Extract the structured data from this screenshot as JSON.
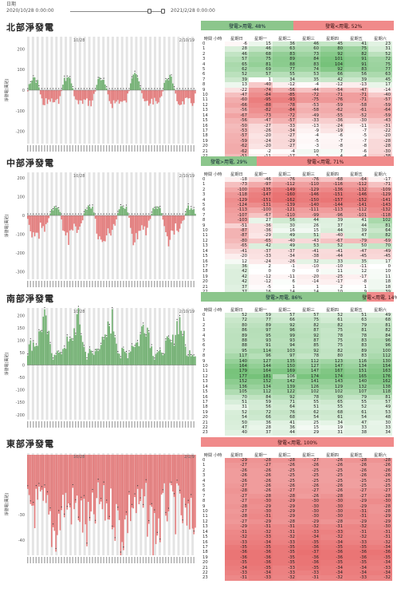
{
  "header": {
    "label": "日期",
    "start_date": "2020/10/28 0:00:00",
    "end_date": "2021/2/28 0:00:00"
  },
  "columns": [
    "時間 小時",
    "星期日",
    "星期一",
    "星期二",
    "星期三",
    "星期四",
    "星期五",
    "星期六"
  ],
  "colors": {
    "positive": "#5aa55a",
    "negative": "#e06666",
    "pos_bar": "#8cc68c",
    "neg_bar": "#f08a8a"
  },
  "sections": [
    {
      "title": "北部淨發電",
      "ylabel": "淨發電(萬瓩)",
      "chart_start": "10/28",
      "chart_end": "2/10/19",
      "pos_label": "發電>用電, 48%",
      "neg_label": "發電<用電, 52%",
      "pos_pct": 48,
      "yticks": [
        200,
        100,
        0,
        -100,
        -200
      ],
      "ylim": [
        -260,
        260
      ],
      "rows": [
        [
          0,
          -6,
          15,
          36,
          46,
          45,
          41,
          23
        ],
        [
          1,
          28,
          46,
          63,
          60,
          80,
          75,
          31
        ],
        [
          2,
          46,
          68,
          83,
          73,
          92,
          82,
          52
        ],
        [
          3,
          57,
          75,
          89,
          84,
          101,
          91,
          72
        ],
        [
          4,
          65,
          81,
          88,
          83,
          104,
          91,
          75
        ],
        [
          5,
          62,
          69,
          77,
          74,
          92,
          83,
          77
        ],
        [
          6,
          52,
          57,
          55,
          53,
          66,
          56,
          63
        ],
        [
          7,
          39,
          1,
          34,
          35,
          42,
          39,
          45
        ],
        [
          8,
          13,
          -40,
          -12,
          -4,
          -12,
          -13,
          17
        ],
        [
          9,
          -22,
          -74,
          -56,
          -44,
          -54,
          -47,
          -14
        ],
        [
          10,
          -47,
          -84,
          -85,
          -72,
          -71,
          -71,
          -40
        ],
        [
          11,
          -60,
          -95,
          -93,
          -75,
          -76,
          -71,
          -57
        ],
        [
          12,
          -66,
          -88,
          -78,
          -53,
          -59,
          -58,
          -59
        ],
        [
          13,
          -56,
          -82,
          -84,
          -58,
          -62,
          -61,
          -64
        ],
        [
          14,
          -67,
          -73,
          -72,
          -49,
          -55,
          -52,
          -59
        ],
        [
          15,
          -56,
          -47,
          -57,
          -33,
          -36,
          -30,
          -43
        ],
        [
          16,
          -50,
          -27,
          -33,
          -13,
          -24,
          -11,
          -31
        ],
        [
          17,
          -53,
          -26,
          -34,
          -9,
          -19,
          -7,
          -22
        ],
        [
          18,
          -57,
          -20,
          -27,
          -4,
          -6,
          -5,
          -20
        ],
        [
          19,
          -59,
          -24,
          -29,
          -5,
          -7,
          -7,
          -28
        ],
        [
          20,
          -62,
          -20,
          -27,
          -3,
          -8,
          -8,
          -28
        ],
        [
          21,
          -62,
          -2,
          -4,
          10,
          7,
          -6,
          -30
        ],
        [
          22,
          -51,
          -11,
          -17,
          5,
          4,
          -4,
          -38
        ],
        [
          23,
          -22,
          -4,
          -11,
          3,
          -3,
          -21,
          -24
        ]
      ]
    },
    {
      "title": "中部淨發電",
      "ylabel": "淨發電(萬瓩)",
      "chart_start": "10/28",
      "chart_end": "2/10/19",
      "pos_label": "發電>用電, 29%",
      "neg_label": "發電<用電, 71%",
      "pos_pct": 29,
      "yticks": [
        200,
        100,
        0,
        -100,
        -200,
        -300
      ],
      "ylim": [
        -340,
        230
      ],
      "rows": [
        [
          0,
          -18,
          -46,
          -76,
          -76,
          -68,
          -64,
          -17
        ],
        [
          1,
          -73,
          -97,
          -112,
          -110,
          -116,
          -112,
          -71
        ],
        [
          2,
          -100,
          -135,
          -149,
          -129,
          -136,
          -132,
          -109
        ],
        [
          3,
          -118,
          -147,
          -160,
          -146,
          -151,
          -146,
          -129
        ],
        [
          4,
          -129,
          -151,
          -162,
          -150,
          -157,
          -152,
          -141
        ],
        [
          5,
          -124,
          -131,
          -139,
          -140,
          -144,
          -141,
          -143
        ],
        [
          6,
          -113,
          -100,
          -121,
          -111,
          -113,
          -112,
          -132
        ],
        [
          7,
          -107,
          -67,
          -110,
          -99,
          -96,
          -101,
          -118
        ],
        [
          8,
          -103,
          27,
          56,
          44,
          39,
          41,
          102
        ],
        [
          9,
          -51,
          -36,
          30,
          26,
          37,
          44,
          81
        ],
        [
          10,
          -87,
          -36,
          16,
          15,
          44,
          39,
          64
        ],
        [
          11,
          -87,
          -29,
          49,
          51,
          -40,
          47,
          82
        ],
        [
          12,
          -80,
          -65,
          -40,
          -43,
          -67,
          -79,
          -69
        ],
        [
          13,
          -65,
          42,
          49,
          53,
          52,
          50,
          70
        ],
        [
          14,
          -41,
          -37,
          -37,
          -41,
          -41,
          -47,
          -49
        ],
        [
          15,
          -20,
          -33,
          -34,
          -38,
          -44,
          -45,
          -45
        ],
        [
          16,
          12,
          -24,
          -26,
          32,
          33,
          35,
          17
        ],
        [
          17,
          36,
          2,
          -1,
          -10,
          -10,
          -11,
          0
        ],
        [
          18,
          42,
          0,
          0,
          0,
          11,
          12,
          10
        ],
        [
          19,
          42,
          -12,
          -11,
          -20,
          -25,
          -17,
          11
        ],
        [
          20,
          42,
          -12,
          6,
          -14,
          -17,
          -8,
          18
        ],
        [
          21,
          37,
          -5,
          1,
          1,
          2,
          1,
          18
        ],
        [
          22,
          37,
          16,
          14,
          14,
          10,
          9,
          39
        ],
        [
          23,
          14,
          -3,
          -2,
          -1,
          3,
          14,
          22
        ]
      ]
    },
    {
      "title": "南部淨發電",
      "ylabel": "淨發電(萬瓩)",
      "chart_start": "10/28",
      "chart_end": "2/10/19",
      "pos_label": "發電>用電, 86%",
      "neg_label": "發電<用電, 14%",
      "pos_pct": 86,
      "yticks": [
        200,
        150,
        100,
        50,
        0,
        -50,
        -100,
        -150,
        -200
      ],
      "ylim": [
        -220,
        230
      ],
      "rows": [
        [
          0,
          52,
          59,
          57,
          57,
          52,
          51,
          49
        ],
        [
          1,
          72,
          77,
          66,
          75,
          61,
          63,
          68
        ],
        [
          2,
          80,
          89,
          92,
          82,
          82,
          79,
          81
        ],
        [
          3,
          86,
          97,
          96,
          87,
          75,
          81,
          82
        ],
        [
          4,
          89,
          95,
          99,
          92,
          78,
          78,
          84
        ],
        [
          5,
          88,
          93,
          93,
          87,
          75,
          83,
          96
        ],
        [
          6,
          88,
          91,
          94,
          85,
          75,
          83,
          96
        ],
        [
          7,
          95,
          114,
          103,
          92,
          82,
          89,
          100
        ],
        [
          8,
          117,
          96,
          97,
          78,
          80,
          83,
          112
        ],
        [
          9,
          140,
          127,
          135,
          112,
          123,
          116,
          130
        ],
        [
          10,
          164,
          144,
          150,
          127,
          147,
          134,
          154
        ],
        [
          11,
          179,
          164,
          169,
          147,
          167,
          151,
          163
        ],
        [
          12,
          177,
          181,
          106,
          174,
          174,
          165,
          176
        ],
        [
          13,
          152,
          152,
          142,
          141,
          143,
          140,
          162
        ],
        [
          14,
          136,
          134,
          139,
          126,
          129,
          132,
          138
        ],
        [
          15,
          105,
          112,
          122,
          102,
          102,
          107,
          118
        ],
        [
          16,
          70,
          84,
          92,
          78,
          90,
          79,
          81
        ],
        [
          17,
          51,
          59,
          71,
          55,
          65,
          55,
          57
        ],
        [
          18,
          31,
          56,
          64,
          51,
          55,
          52,
          49
        ],
        [
          19,
          52,
          72,
          76,
          62,
          68,
          61,
          53
        ],
        [
          20,
          54,
          66,
          68,
          54,
          61,
          54,
          48
        ],
        [
          21,
          50,
          36,
          41,
          25,
          34,
          47,
          30
        ],
        [
          22,
          47,
          28,
          36,
          15,
          19,
          33,
          33
        ],
        [
          23,
          40,
          37,
          44,
          29,
          31,
          38,
          34
        ]
      ]
    },
    {
      "title": "東部淨發電",
      "ylabel": "淨發電(萬瓩)",
      "chart_start": "10/28",
      "chart_end": "2/2/9",
      "pos_label": "",
      "neg_label": "發電<用電, 100%",
      "pos_pct": 0,
      "yticks": [
        -30,
        -40
      ],
      "ylim": [
        -46,
        -6
      ],
      "rows": [
        [
          0,
          -29,
          -28,
          -28,
          -27,
          -26,
          -28,
          -28
        ],
        [
          1,
          -27,
          -27,
          -26,
          -26,
          -26,
          -26,
          -26
        ],
        [
          2,
          -26,
          -26,
          -25,
          -25,
          -25,
          -26,
          -26
        ],
        [
          3,
          -26,
          -26,
          -25,
          -25,
          -25,
          -26,
          -26
        ],
        [
          4,
          -26,
          -26,
          -25,
          -25,
          -25,
          -25,
          -25
        ],
        [
          5,
          -27,
          -26,
          -26,
          -26,
          -26,
          -25,
          -25
        ],
        [
          6,
          -28,
          -26,
          -27,
          -27,
          -26,
          -27,
          -27
        ],
        [
          7,
          -27,
          -28,
          -28,
          -26,
          -28,
          -27,
          -28
        ],
        [
          8,
          -27,
          -30,
          -29,
          -30,
          -30,
          -29,
          -30
        ],
        [
          9,
          -28,
          -29,
          -29,
          -30,
          -30,
          -29,
          -28
        ],
        [
          10,
          -27,
          -30,
          -29,
          -30,
          -30,
          -31,
          -28
        ],
        [
          11,
          -28,
          -31,
          -29,
          -30,
          -30,
          -31,
          -29
        ],
        [
          12,
          -27,
          -29,
          -28,
          -29,
          -28,
          -29,
          -29
        ],
        [
          13,
          -29,
          -31,
          -31,
          -32,
          -31,
          -32,
          -30
        ],
        [
          14,
          -31,
          -32,
          -31,
          -33,
          -33,
          -31,
          -31
        ],
        [
          15,
          -32,
          -33,
          -32,
          -34,
          -32,
          -32,
          -31
        ],
        [
          16,
          -33,
          -34,
          -33,
          -35,
          -34,
          -33,
          -32
        ],
        [
          17,
          -35,
          -35,
          -35,
          -36,
          -35,
          -35,
          -34
        ],
        [
          18,
          -36,
          -36,
          -35,
          -37,
          -36,
          -36,
          -36
        ],
        [
          19,
          -36,
          -36,
          -35,
          -36,
          -36,
          -36,
          -35
        ],
        [
          20,
          -35,
          -36,
          -35,
          -36,
          -35,
          -35,
          -34
        ],
        [
          21,
          -34,
          -35,
          -33,
          -35,
          -34,
          -34,
          -33
        ],
        [
          22,
          -33,
          -34,
          -33,
          -33,
          -34,
          -34,
          -34
        ],
        [
          23,
          -31,
          -33,
          -32,
          -31,
          -32,
          -33,
          -32
        ]
      ]
    }
  ],
  "chart_data": [
    {
      "type": "table",
      "title": "北部淨發電",
      "ylabel": "淨發電(萬瓩)",
      "ylim": [
        -260,
        260
      ]
    },
    {
      "type": "table",
      "title": "中部淨發電",
      "ylabel": "淨發電(萬瓩)",
      "ylim": [
        -340,
        230
      ]
    },
    {
      "type": "table",
      "title": "南部淨發電",
      "ylabel": "淨發電(萬瓩)",
      "ylim": [
        -220,
        230
      ]
    },
    {
      "type": "table",
      "title": "東部淨發電",
      "ylabel": "淨發電(萬瓩)",
      "ylim": [
        -46,
        -6
      ]
    }
  ]
}
